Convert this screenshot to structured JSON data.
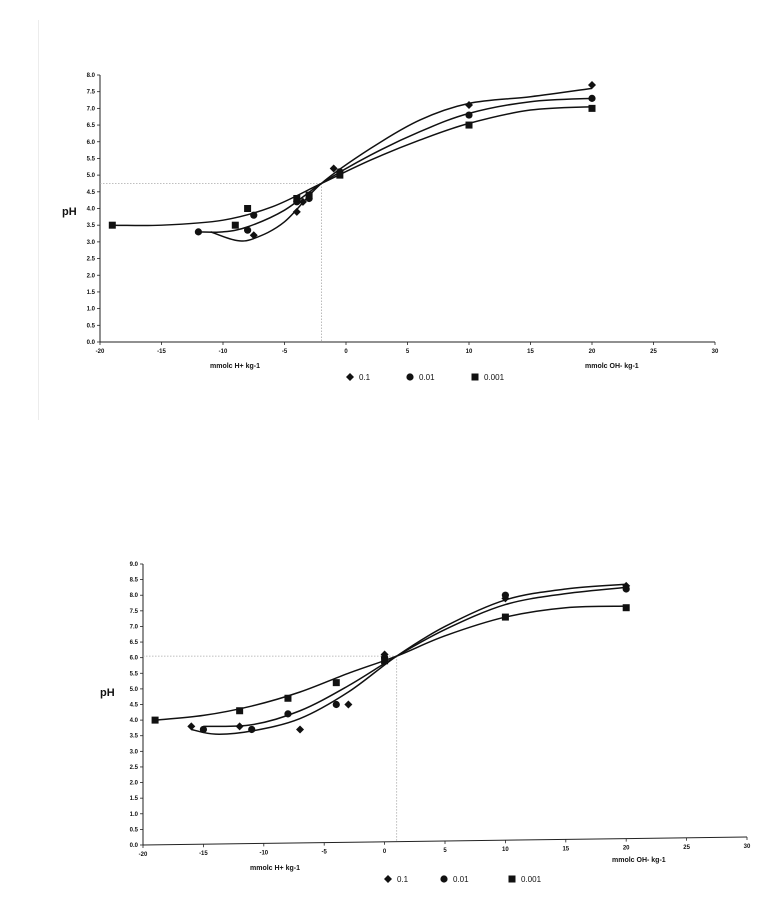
{
  "chart_data": [
    {
      "type": "line",
      "ylabel": "pH",
      "xlabel_left": "mmolc H+ kg-1",
      "xlabel_right": "mmolc OH- kg-1",
      "xlim": [
        -20,
        30
      ],
      "ylim": [
        0.0,
        8.0
      ],
      "x_ticks": [
        -20,
        -15,
        -10,
        -5,
        0,
        5,
        10,
        15,
        20,
        25,
        30
      ],
      "x_tick_labels": [
        "-20",
        "-15",
        "-10",
        "-5",
        "0",
        "5",
        "10",
        "15",
        "20",
        "25",
        "30"
      ],
      "y_ticks": [
        0,
        0.5,
        1,
        1.5,
        2,
        2.5,
        3,
        3.5,
        4,
        4.5,
        5,
        5.5,
        6,
        6.5,
        7,
        7.5,
        8
      ],
      "y_tick_labels": [
        "0.0",
        "0.5",
        "1.0",
        "1.5",
        "2.0",
        "2.5",
        "3.0",
        "3.5",
        "4.0",
        "4.5",
        "5.0",
        "5.5",
        "6.0",
        "6.5",
        "7.0",
        "7.5",
        "8.0"
      ],
      "reference": {
        "x": -2,
        "y": 4.75
      },
      "legend_position": "bottom",
      "series": [
        {
          "name": "0.1",
          "marker": "diamond",
          "points": [
            [
              -7.5,
              3.2
            ],
            [
              -4,
              3.9
            ],
            [
              -3.5,
              4.2
            ],
            [
              -1,
              5.2
            ],
            [
              10,
              7.1
            ],
            [
              20,
              7.7
            ]
          ],
          "curve": [
            [
              -11,
              3.3
            ],
            [
              -9,
              3.05
            ],
            [
              -7.5,
              3.1
            ],
            [
              -5,
              3.6
            ],
            [
              -2,
              4.75
            ],
            [
              2,
              5.8
            ],
            [
              6,
              6.65
            ],
            [
              10,
              7.15
            ],
            [
              15,
              7.35
            ],
            [
              20,
              7.6
            ]
          ]
        },
        {
          "name": "0.01",
          "marker": "circle",
          "points": [
            [
              -12,
              3.3
            ],
            [
              -8,
              3.35
            ],
            [
              -7.5,
              3.8
            ],
            [
              -4,
              4.2
            ],
            [
              -3,
              4.3
            ],
            [
              -0.5,
              5.1
            ],
            [
              10,
              6.8
            ],
            [
              20,
              7.3
            ]
          ],
          "curve": [
            [
              -12,
              3.3
            ],
            [
              -10,
              3.3
            ],
            [
              -8,
              3.45
            ],
            [
              -5,
              3.95
            ],
            [
              -2,
              4.75
            ],
            [
              2,
              5.6
            ],
            [
              6,
              6.3
            ],
            [
              10,
              6.85
            ],
            [
              15,
              7.2
            ],
            [
              20,
              7.3
            ]
          ]
        },
        {
          "name": "0.001",
          "marker": "square",
          "points": [
            [
              -19,
              3.5
            ],
            [
              -9,
              3.5
            ],
            [
              -8,
              4.0
            ],
            [
              -4,
              4.3
            ],
            [
              -3,
              4.4
            ],
            [
              -0.5,
              5.0
            ],
            [
              10,
              6.5
            ],
            [
              20,
              7.0
            ]
          ],
          "curve": [
            [
              -19,
              3.5
            ],
            [
              -15,
              3.5
            ],
            [
              -10,
              3.65
            ],
            [
              -6,
              4.05
            ],
            [
              -2,
              4.75
            ],
            [
              2,
              5.45
            ],
            [
              6,
              6.05
            ],
            [
              10,
              6.55
            ],
            [
              15,
              6.95
            ],
            [
              20,
              7.05
            ]
          ]
        }
      ]
    },
    {
      "type": "line",
      "ylabel": "pH",
      "xlabel_left": "mmolc H+ kg-1",
      "xlabel_right": "mmolc OH- kg-1",
      "xlim": [
        -20,
        30
      ],
      "ylim": [
        0.0,
        9.0
      ],
      "x_ticks": [
        -20,
        -15,
        -10,
        -5,
        0,
        5,
        10,
        15,
        20,
        25,
        30
      ],
      "x_tick_labels": [
        "-20",
        "-15",
        "-10",
        "-5",
        "0",
        "5",
        "10",
        "15",
        "20",
        "25",
        "30"
      ],
      "y_ticks": [
        0,
        0.5,
        1,
        1.5,
        2,
        2.5,
        3,
        3.5,
        4,
        4.5,
        5,
        5.5,
        6,
        6.5,
        7,
        7.5,
        8,
        8.5,
        9
      ],
      "y_tick_labels": [
        "0.0",
        "0.5",
        "1.0",
        "1.5",
        "2.0",
        "2.5",
        "3.0",
        "3.5",
        "4.0",
        "4.5",
        "5.0",
        "5.5",
        "6.0",
        "6.5",
        "7.0",
        "7.5",
        "8.0",
        "8.5",
        "9.0"
      ],
      "reference": {
        "x": 1,
        "y": 6.05
      },
      "legend_position": "bottom",
      "series": [
        {
          "name": "0.1",
          "marker": "diamond",
          "points": [
            [
              -16,
              3.8
            ],
            [
              -12,
              3.8
            ],
            [
              -7,
              3.7
            ],
            [
              -3,
              4.5
            ],
            [
              0,
              6.1
            ],
            [
              10,
              7.9
            ],
            [
              20,
              8.3
            ]
          ],
          "curve": [
            [
              -16,
              3.7
            ],
            [
              -14,
              3.55
            ],
            [
              -11,
              3.65
            ],
            [
              -7,
              4.05
            ],
            [
              -3,
              4.9
            ],
            [
              1,
              6.05
            ],
            [
              5,
              7.0
            ],
            [
              10,
              7.85
            ],
            [
              15,
              8.2
            ],
            [
              20,
              8.35
            ]
          ]
        },
        {
          "name": "0.01",
          "marker": "circle",
          "points": [
            [
              -15,
              3.7
            ],
            [
              -11,
              3.7
            ],
            [
              -8,
              4.2
            ],
            [
              -4,
              4.5
            ],
            [
              0,
              6.0
            ],
            [
              10,
              8.0
            ],
            [
              20,
              8.2
            ]
          ],
          "curve": [
            [
              -15,
              3.8
            ],
            [
              -11,
              3.85
            ],
            [
              -7,
              4.3
            ],
            [
              -3,
              5.1
            ],
            [
              1,
              6.05
            ],
            [
              5,
              6.9
            ],
            [
              10,
              7.7
            ],
            [
              15,
              8.05
            ],
            [
              20,
              8.25
            ]
          ]
        },
        {
          "name": "0.001",
          "marker": "square",
          "points": [
            [
              -19,
              4.0
            ],
            [
              -12,
              4.3
            ],
            [
              -8,
              4.7
            ],
            [
              -4,
              5.2
            ],
            [
              0,
              5.9
            ],
            [
              10,
              7.3
            ],
            [
              20,
              7.6
            ]
          ],
          "curve": [
            [
              -19,
              4.0
            ],
            [
              -15,
              4.15
            ],
            [
              -11,
              4.45
            ],
            [
              -7,
              4.9
            ],
            [
              -3,
              5.5
            ],
            [
              1,
              6.05
            ],
            [
              5,
              6.7
            ],
            [
              10,
              7.3
            ],
            [
              15,
              7.6
            ],
            [
              20,
              7.65
            ]
          ]
        }
      ]
    }
  ]
}
